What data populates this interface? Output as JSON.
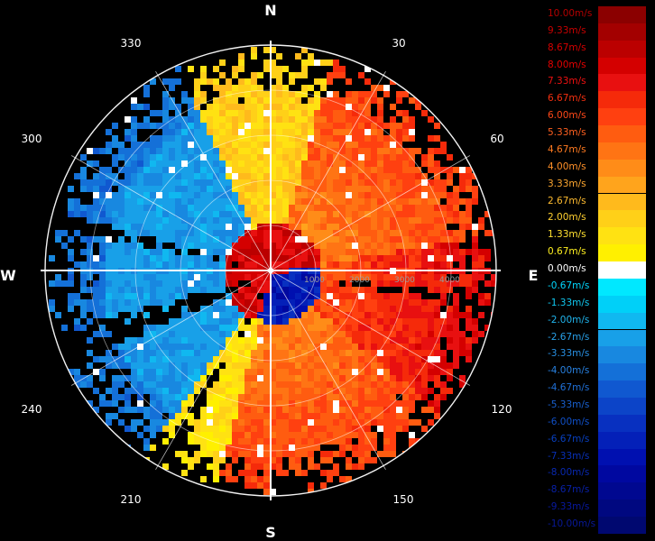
{
  "compass": {
    "north": "N",
    "south": "S",
    "east": "E",
    "west": "W"
  },
  "bearings": [
    "30",
    "60",
    "120",
    "150",
    "210",
    "240",
    "300",
    "330"
  ],
  "range_labels": [
    "1000",
    "2000",
    "3000",
    "4000"
  ],
  "colorbar": {
    "entries": [
      {
        "label": "10.00m/s",
        "color": "#8b0000",
        "text_color": "#b30000"
      },
      {
        "label": "9.33m/s",
        "color": "#a30000",
        "text_color": "#c80000"
      },
      {
        "label": "8.67m/s",
        "color": "#bb0000",
        "text_color": "#d60000"
      },
      {
        "label": "8.00m/s",
        "color": "#d40000",
        "text_color": "#e60000"
      },
      {
        "label": "7.33m/s",
        "color": "#e81010",
        "text_color": "#f01010"
      },
      {
        "label": "6.67m/s",
        "color": "#f52a0a",
        "text_color": "#f53010"
      },
      {
        "label": "6.00m/s",
        "color": "#ff4010",
        "text_color": "#ff4818"
      },
      {
        "label": "5.33m/s",
        "color": "#ff5c10",
        "text_color": "#ff6020"
      },
      {
        "label": "4.67m/s",
        "color": "#ff7414",
        "text_color": "#ff7a20"
      },
      {
        "label": "4.00m/s",
        "color": "#ff8c18",
        "text_color": "#ff9028"
      },
      {
        "label": "3.33m/s",
        "color": "#ffa41c",
        "text_color": "#ffa830"
      },
      {
        "label": "2.67m/s",
        "color": "#ffba1c",
        "text_color": "#ffbc30"
      },
      {
        "label": "2.00m/s",
        "color": "#ffd018",
        "text_color": "#ffd030"
      },
      {
        "label": "1.33m/s",
        "color": "#ffe212",
        "text_color": "#ffe030"
      },
      {
        "label": "0.67m/s",
        "color": "#fff000",
        "text_color": "#fff020"
      },
      {
        "label": "0.00m/s",
        "color": "#ffffff",
        "text_color": "#ffffff"
      },
      {
        "label": "-0.67m/s",
        "color": "#00e8ff",
        "text_color": "#00d8ff"
      },
      {
        "label": "-1.33m/s",
        "color": "#00d0f8",
        "text_color": "#10c8f0"
      },
      {
        "label": "-2.00m/s",
        "color": "#10b8f0",
        "text_color": "#20b4ec"
      },
      {
        "label": "-2.67m/s",
        "color": "#18a0e8",
        "text_color": "#28a0e8"
      },
      {
        "label": "-3.33m/s",
        "color": "#1888e0",
        "text_color": "#2890e4"
      },
      {
        "label": "-4.00m/s",
        "color": "#1470d8",
        "text_color": "#2880e0"
      },
      {
        "label": "-4.67m/s",
        "color": "#1058d0",
        "text_color": "#2070d8"
      },
      {
        "label": "-5.33m/s",
        "color": "#0c44c8",
        "text_color": "#1860d0"
      },
      {
        "label": "-6.00m/s",
        "color": "#0830c0",
        "text_color": "#1050c8"
      },
      {
        "label": "-6.67m/s",
        "color": "#0420b8",
        "text_color": "#0840c0"
      },
      {
        "label": "-7.33m/s",
        "color": "#0010b0",
        "text_color": "#0830b8"
      },
      {
        "label": "-8.00m/s",
        "color": "#0008a0",
        "text_color": "#0828b0"
      },
      {
        "label": "-8.67m/s",
        "color": "#000890",
        "text_color": "#0820a8"
      },
      {
        "label": "-9.33m/s",
        "color": "#000880",
        "text_color": "#0818a0"
      },
      {
        "label": "-10.00m/s",
        "color": "#000870",
        "text_color": "#081898"
      }
    ]
  }
}
